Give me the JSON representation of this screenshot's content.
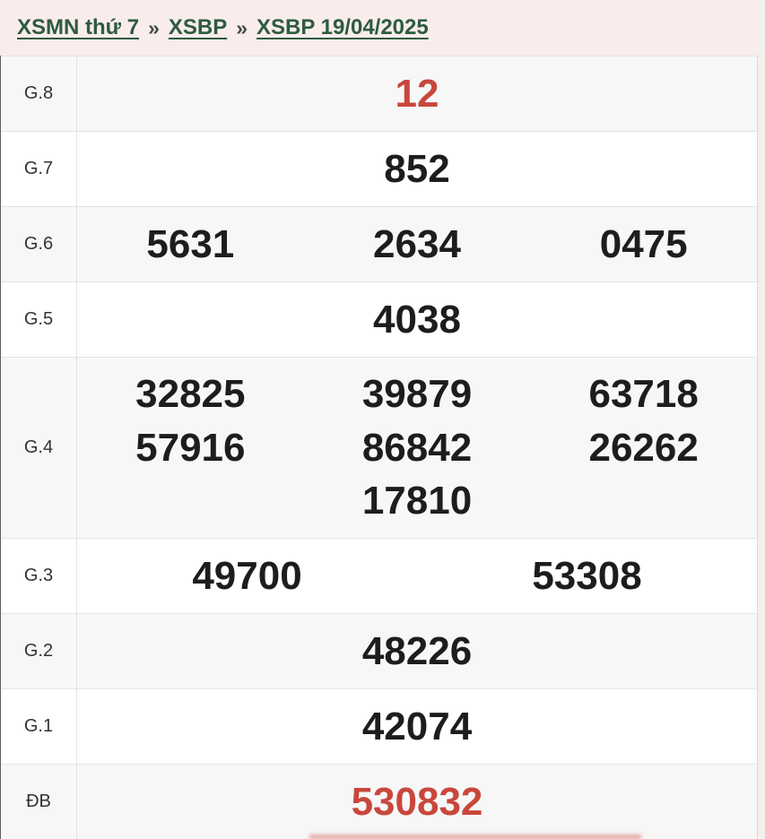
{
  "breadcrumb": {
    "separator": "»",
    "items": [
      {
        "label": "XSMN thứ 7"
      },
      {
        "label": "XSBP"
      },
      {
        "label": "XSBP 19/04/2025"
      }
    ]
  },
  "colors": {
    "accent_red": "#c9473c",
    "link_green": "#2d5b3e",
    "header_bg": "#f9ecec",
    "row_alt_bg": "#f7f7f7",
    "border": "#e4e4e4"
  },
  "results_table": {
    "rows": [
      {
        "label": "G.8",
        "highlight": true,
        "numbers": [
          "12"
        ]
      },
      {
        "label": "G.7",
        "highlight": false,
        "numbers": [
          "852"
        ]
      },
      {
        "label": "G.6",
        "highlight": false,
        "numbers": [
          "5631",
          "2634",
          "0475"
        ]
      },
      {
        "label": "G.5",
        "highlight": false,
        "numbers": [
          "4038"
        ]
      },
      {
        "label": "G.4",
        "highlight": false,
        "numbers": [
          "32825",
          "39879",
          "63718",
          "57916",
          "86842",
          "26262",
          "17810"
        ]
      },
      {
        "label": "G.3",
        "highlight": false,
        "numbers": [
          "49700",
          "53308"
        ]
      },
      {
        "label": "G.2",
        "highlight": false,
        "numbers": [
          "48226"
        ]
      },
      {
        "label": "G.1",
        "highlight": false,
        "numbers": [
          "42074"
        ]
      },
      {
        "label": "ĐB",
        "highlight": true,
        "numbers": [
          "530832"
        ]
      }
    ]
  }
}
